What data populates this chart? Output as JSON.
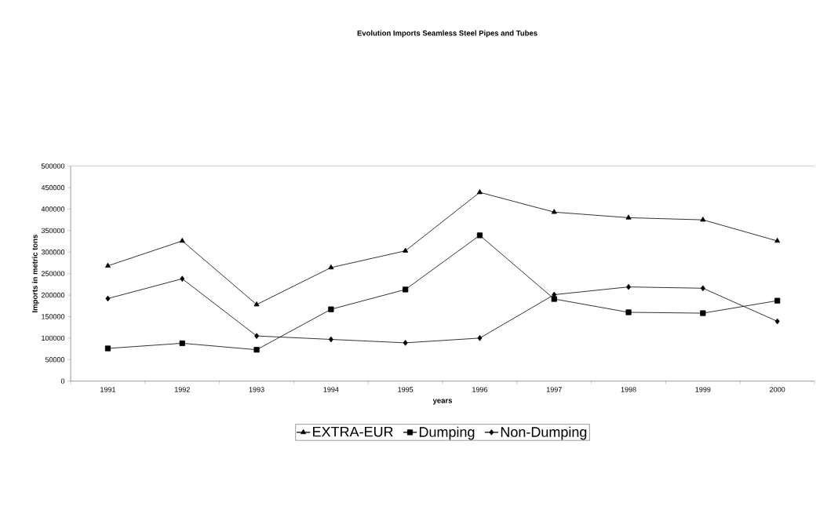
{
  "chart_data": {
    "type": "line",
    "title": "Evolution Imports Seamless Steel Pipes and Tubes",
    "xlabel": "years",
    "ylabel": "Imports in metric tons",
    "categories": [
      "1991",
      "1992",
      "1993",
      "1994",
      "1995",
      "1996",
      "1997",
      "1998",
      "1999",
      "2000"
    ],
    "series": [
      {
        "name": "EXTRA-EUR",
        "color": "#000000",
        "marker": "triangle",
        "values": [
          268000,
          326000,
          178000,
          264000,
          303000,
          439000,
          393000,
          380000,
          375000,
          326000
        ]
      },
      {
        "name": "Dumping",
        "color": "#000000",
        "marker": "square",
        "values": [
          76000,
          88000,
          73000,
          167000,
          213000,
          339000,
          191000,
          160000,
          158000,
          187000
        ]
      },
      {
        "name": "Non-Dumping",
        "color": "#000000",
        "marker": "diamond",
        "values": [
          192000,
          238000,
          105000,
          97000,
          89000,
          100000,
          201000,
          219000,
          216000,
          139000
        ]
      }
    ],
    "ylim": [
      0,
      500000
    ],
    "yticks": [
      0,
      50000,
      100000,
      150000,
      200000,
      250000,
      300000,
      350000,
      400000,
      450000,
      500000
    ],
    "grid": false,
    "legend": "bottom",
    "line_style": "solid"
  }
}
